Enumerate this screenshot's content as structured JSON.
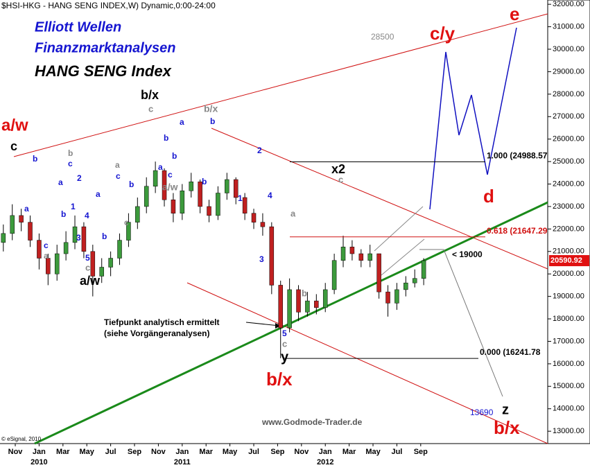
{
  "chart_data": {
    "type": "candlestick",
    "title": "$HSI-HKG - HANG SENG INDEX,W) Dynamic,0:00-24:00",
    "x": [
      -1.0,
      -0.25,
      0.5,
      1.25,
      2.0,
      2.75,
      3.5,
      4.25,
      5.0,
      5.75,
      6.5,
      7.25,
      8.0,
      8.75,
      9.5,
      10.25,
      11.0,
      11.75,
      12.5,
      13.25,
      14.0,
      14.75,
      15.5,
      16.25,
      17.0,
      17.75,
      18.5,
      19.25,
      20.0,
      20.75,
      21.5,
      22.25,
      23.0,
      23.75,
      24.5,
      25.25,
      26.0,
      26.75,
      27.5,
      28.25,
      29.0,
      29.75,
      30.5,
      31.25,
      32.0,
      32.75,
      33.5,
      34.25
    ],
    "open": [
      21400,
      21800,
      22600,
      22300,
      21500,
      20700,
      20000,
      20900,
      21400,
      22100,
      21000,
      19900,
      20300,
      20700,
      21500,
      22300,
      23000,
      23900,
      24600,
      23300,
      22700,
      23700,
      24100,
      23000,
      22600,
      23600,
      24200,
      23400,
      22700,
      22300,
      22100,
      19500,
      17600,
      19300,
      18300,
      18800,
      18500,
      19300,
      20600,
      21200,
      20900,
      20600,
      20900,
      19200,
      18700,
      19300,
      19600,
      19800
    ],
    "high": [
      22200,
      23100,
      22900,
      22600,
      21800,
      20900,
      21300,
      21900,
      22600,
      22300,
      21300,
      20700,
      21000,
      21800,
      22700,
      23400,
      24300,
      25000,
      24700,
      23600,
      24000,
      24500,
      24200,
      23300,
      23900,
      24500,
      24300,
      23600,
      22900,
      22700,
      22300,
      19700,
      19800,
      19500,
      19200,
      19100,
      19600,
      20900,
      21700,
      21500,
      21100,
      21300,
      20900,
      19500,
      19600,
      19900,
      20200,
      20700
    ],
    "low": [
      21000,
      21500,
      21900,
      21200,
      20200,
      19500,
      19700,
      20600,
      21100,
      20700,
      19000,
      19600,
      19900,
      20400,
      21200,
      22000,
      22700,
      23600,
      23000,
      22300,
      22400,
      23400,
      22700,
      22300,
      22400,
      23300,
      23100,
      22400,
      22000,
      21700,
      19100,
      16250,
      17400,
      17900,
      18100,
      18200,
      18300,
      19100,
      20300,
      20600,
      20300,
      20300,
      18900,
      18100,
      18400,
      19000,
      19400,
      19500
    ],
    "close": [
      21800,
      22600,
      22300,
      21500,
      20700,
      20000,
      20900,
      21400,
      22100,
      21000,
      19900,
      20300,
      20700,
      21500,
      22300,
      23000,
      23900,
      24600,
      23300,
      22700,
      23700,
      24100,
      23000,
      22600,
      23600,
      24200,
      23400,
      22700,
      22300,
      22100,
      19500,
      17600,
      19300,
      18300,
      18800,
      18500,
      19300,
      20600,
      21200,
      20900,
      20600,
      20900,
      19200,
      18700,
      19300,
      19600,
      19800,
      20590
    ],
    "xlim": [
      -1.28,
      44.65
    ],
    "xticks": [
      {
        "value": 0,
        "label": "Nov"
      },
      {
        "value": 2,
        "label": "Jan"
      },
      {
        "value": 4,
        "label": "Mar"
      },
      {
        "value": 6,
        "label": "May"
      },
      {
        "value": 8,
        "label": "Jul"
      },
      {
        "value": 10,
        "label": "Sep"
      },
      {
        "value": 12,
        "label": "Nov"
      },
      {
        "value": 14,
        "label": "Jan"
      },
      {
        "value": 16,
        "label": "Mar"
      },
      {
        "value": 18,
        "label": "May"
      },
      {
        "value": 20,
        "label": "Jul"
      },
      {
        "value": 22,
        "label": "Sep"
      },
      {
        "value": 24,
        "label": "Nov"
      },
      {
        "value": 26,
        "label": "Jan"
      },
      {
        "value": 28,
        "label": "Mar"
      },
      {
        "value": 30,
        "label": "May"
      },
      {
        "value": 32,
        "label": "Jul"
      },
      {
        "value": 34,
        "label": "Sep"
      }
    ],
    "years": [
      "2010",
      "2011",
      "2012"
    ],
    "ylim": [
      12450,
      32190
    ],
    "yticks": [
      {
        "value": 13000,
        "label": "13000.00"
      },
      {
        "value": 14000,
        "label": "14000.00"
      },
      {
        "value": 15000,
        "label": "15000.00"
      },
      {
        "value": 16000,
        "label": "16000.00"
      },
      {
        "value": 17000,
        "label": "17000.00"
      },
      {
        "value": 18000,
        "label": "18000.00"
      },
      {
        "value": 19000,
        "label": "19000.00"
      },
      {
        "value": 20000,
        "label": "20000.00"
      },
      {
        "value": 21000,
        "label": "21000.00"
      },
      {
        "value": 22000,
        "label": "22000.00"
      },
      {
        "value": 23000,
        "label": "23000.00"
      },
      {
        "value": 24000,
        "label": "24000.00"
      },
      {
        "value": 25000,
        "label": "25000.00"
      },
      {
        "value": 26000,
        "label": "26000.00"
      },
      {
        "value": 27000,
        "label": "27000.00"
      },
      {
        "value": 28000,
        "label": "28000.00"
      },
      {
        "value": 29000,
        "label": "29000.00"
      },
      {
        "value": 30000,
        "label": "30000.00"
      },
      {
        "value": 31000,
        "label": "31000.00"
      },
      {
        "value": 32000,
        "label": "32000.00"
      }
    ],
    "last_price": 20590.92,
    "fib_levels": [
      {
        "value": 24988.57,
        "label": "1.000 (24988.57"
      },
      {
        "value": 21647.29,
        "label": "0.618 (21647.29"
      },
      {
        "value": 16241.78,
        "label": "0.000 (16241.78"
      }
    ],
    "annotations": [
      "Elliott Wellen",
      "Finanzmarktanalysen",
      "HANG SENG Index",
      "a/w",
      "c",
      "b/x",
      "c",
      "b/x",
      "28500",
      "c/y",
      "e",
      "x2",
      "c",
      "d",
      "< 19000",
      "a/w",
      "c",
      "5",
      "Tiefpunkt analytisch ermittelt",
      "(siehe Vorgängeranalysen)",
      "5",
      "c",
      "y",
      "b/x",
      "13690",
      "z",
      "b/x",
      "b",
      "a",
      "c",
      "a",
      "b",
      "c",
      "a",
      "2",
      "1",
      "b",
      "4",
      "3",
      "b",
      "a",
      "a",
      "c",
      "b",
      "c",
      "a",
      "b",
      "b",
      "a",
      "c",
      "a/w",
      "b",
      "b",
      "2",
      "1",
      "4",
      "3",
      "a",
      "b"
    ],
    "source": "www.Godmode-Trader.de",
    "copyright": "© eSignal, 2010"
  }
}
